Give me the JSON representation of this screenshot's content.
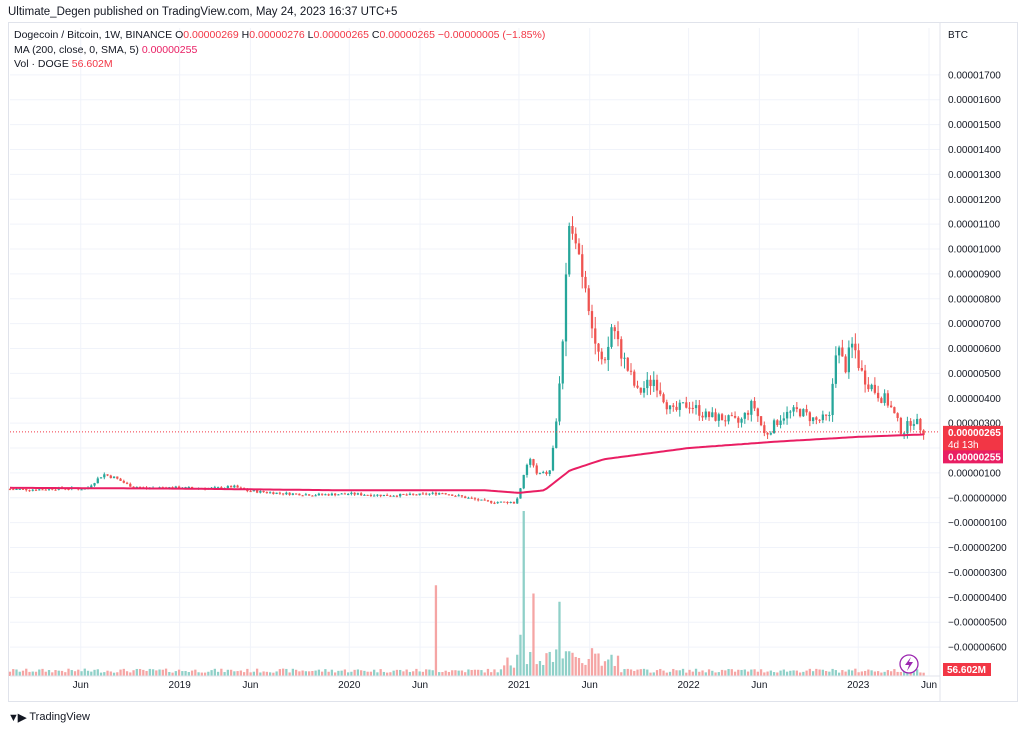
{
  "header": {
    "publisher": "Ultimate_Degen published on TradingView.com, May 24, 2023 16:37 UTC+5"
  },
  "legend": {
    "symbol": "Dogecoin / Bitcoin, 1W, BINANCE",
    "o_label": "O",
    "o": "0.00000269",
    "h_label": "H",
    "h": "0.00000276",
    "l_label": "L",
    "l": "0.00000265",
    "c_label": "C",
    "c": "0.00000265",
    "change": "−0.00000005 (−1.85%)",
    "ma_label": "MA (200, close, 0, SMA, 5)",
    "ma_value": "0.00000255",
    "vol_label": "Vol · DOGE",
    "vol_value": "56.602M"
  },
  "axis": {
    "currency": "BTC",
    "price_badge": "0.00000265",
    "countdown": "4d 13h",
    "ma_badge": "0.00000255",
    "vol_badge": "56.602M"
  },
  "footer": {
    "brand": "TradingView"
  },
  "colors": {
    "up": "#26a69a",
    "down": "#ef5350",
    "ma": "#e91e63",
    "price_line": "#f23645",
    "grid": "#f0f3fa"
  },
  "chart_data": {
    "type": "candlestick",
    "symbol": "Dogecoin / Bitcoin",
    "interval": "1W",
    "exchange": "BINANCE",
    "yaxis": {
      "ticks": [
        "0.00001700",
        "0.00001600",
        "0.00001500",
        "0.00001400",
        "0.00001300",
        "0.00001200",
        "0.00001100",
        "0.00001000",
        "0.00000900",
        "0.00000800",
        "0.00000700",
        "0.00000600",
        "0.00000500",
        "0.00000400",
        "0.00000300",
        "0.00000200",
        "0.00000100",
        "−0.00000000",
        "−0.00000100",
        "−0.00000200",
        "−0.00000300",
        "−0.00000400",
        "−0.00000500",
        "−0.00000600"
      ],
      "ylim": [
        -6.6e-06,
        1.82e-05
      ]
    },
    "xaxis": {
      "ticks": [
        {
          "label": "Jun",
          "t": 2018.417
        },
        {
          "label": "2019",
          "t": 2019.0
        },
        {
          "label": "Jun",
          "t": 2019.417
        },
        {
          "label": "2020",
          "t": 2020.0
        },
        {
          "label": "Jun",
          "t": 2020.417
        },
        {
          "label": "2021",
          "t": 2021.0
        },
        {
          "label": "Jun",
          "t": 2021.417
        },
        {
          "label": "2022",
          "t": 2022.0
        },
        {
          "label": "Jun",
          "t": 2022.417
        },
        {
          "label": "2023",
          "t": 2023.0
        },
        {
          "label": "Jun",
          "t": 2023.417
        }
      ],
      "xlim": [
        2018.0,
        2023.47
      ]
    },
    "last_price": 2.65e-06,
    "ma_last": 2.55e-06,
    "ohlc_last": {
      "o": 2.69e-06,
      "h": 2.76e-06,
      "l": 2.65e-06,
      "c": 2.65e-06
    },
    "close_anchors": [
      [
        2018.0,
        3.5e-07
      ],
      [
        2018.15,
        3.3e-07
      ],
      [
        2018.3,
        3.8e-07
      ],
      [
        2018.45,
        3.6e-07
      ],
      [
        2018.55,
        9.5e-07
      ],
      [
        2018.62,
        8e-07
      ],
      [
        2018.7,
        5e-07
      ],
      [
        2018.8,
        3.8e-07
      ],
      [
        2018.9,
        4.2e-07
      ],
      [
        2019.0,
        4e-07
      ],
      [
        2019.2,
        3.8e-07
      ],
      [
        2019.32,
        4.5e-07
      ],
      [
        2019.4,
        2.8e-07
      ],
      [
        2019.6,
        1.8e-07
      ],
      [
        2019.8,
        1.2e-07
      ],
      [
        2020.0,
        1.6e-07
      ],
      [
        2020.2,
        1e-07
      ],
      [
        2020.4,
        1.2e-07
      ],
      [
        2020.55,
        2e-07
      ],
      [
        2020.8,
        -1.5e-07
      ],
      [
        2020.97,
        -2e-07
      ],
      [
        2021.0,
        1e-07
      ],
      [
        2021.04,
        1.2e-06
      ],
      [
        2021.07,
        1.6e-06
      ],
      [
        2021.1,
        9.5e-07
      ],
      [
        2021.18,
        1e-06
      ],
      [
        2021.22,
        3e-06
      ],
      [
        2021.26,
        6.5e-06
      ],
      [
        2021.29,
        1e-05
      ],
      [
        2021.32,
        1.15e-05
      ],
      [
        2021.36,
        9.5e-06
      ],
      [
        2021.4,
        8.5e-06
      ],
      [
        2021.45,
        6.2e-06
      ],
      [
        2021.5,
        5e-06
      ],
      [
        2021.55,
        7e-06
      ],
      [
        2021.62,
        5.5e-06
      ],
      [
        2021.7,
        4.2e-06
      ],
      [
        2021.8,
        4.8e-06
      ],
      [
        2021.9,
        3.4e-06
      ],
      [
        2022.0,
        3.8e-06
      ],
      [
        2022.1,
        3.3e-06
      ],
      [
        2022.2,
        3.2e-06
      ],
      [
        2022.3,
        3e-06
      ],
      [
        2022.38,
        3.8e-06
      ],
      [
        2022.45,
        2.5e-06
      ],
      [
        2022.55,
        3.3e-06
      ],
      [
        2022.65,
        3.5e-06
      ],
      [
        2022.75,
        3.1e-06
      ],
      [
        2022.83,
        3.2e-06
      ],
      [
        2022.87,
        6.2e-06
      ],
      [
        2022.92,
        5.2e-06
      ],
      [
        2022.97,
        6.2e-06
      ],
      [
        2023.02,
        5e-06
      ],
      [
        2023.1,
        4.3e-06
      ],
      [
        2023.18,
        3.8e-06
      ],
      [
        2023.26,
        2.6e-06
      ],
      [
        2023.32,
        3.2e-06
      ],
      [
        2023.38,
        2.72e-06
      ],
      [
        2023.4,
        2.65e-06
      ]
    ],
    "ma_anchors": [
      [
        2018.0,
        4e-07
      ],
      [
        2019.0,
        3.7e-07
      ],
      [
        2020.0,
        3e-07
      ],
      [
        2020.8,
        3e-07
      ],
      [
        2021.0,
        2e-07
      ],
      [
        2021.15,
        3e-07
      ],
      [
        2021.3,
        1.1e-06
      ],
      [
        2021.5,
        1.55e-06
      ],
      [
        2022.0,
        2e-06
      ],
      [
        2022.5,
        2.25e-06
      ],
      [
        2023.0,
        2.45e-06
      ],
      [
        2023.4,
        2.55e-06
      ]
    ],
    "volume_spikes": [
      {
        "t": 2020.52,
        "rel": 0.55,
        "dir": "up"
      },
      {
        "t": 2021.02,
        "rel": 1.0,
        "dir": "up"
      },
      {
        "t": 2021.08,
        "rel": 0.5,
        "dir": "up"
      },
      {
        "t": 2021.0,
        "rel": 0.25,
        "dir": "down"
      },
      {
        "t": 2021.23,
        "rel": 0.45,
        "dir": "up"
      },
      {
        "t": 2021.3,
        "rel": 0.15,
        "dir": "down"
      }
    ]
  }
}
